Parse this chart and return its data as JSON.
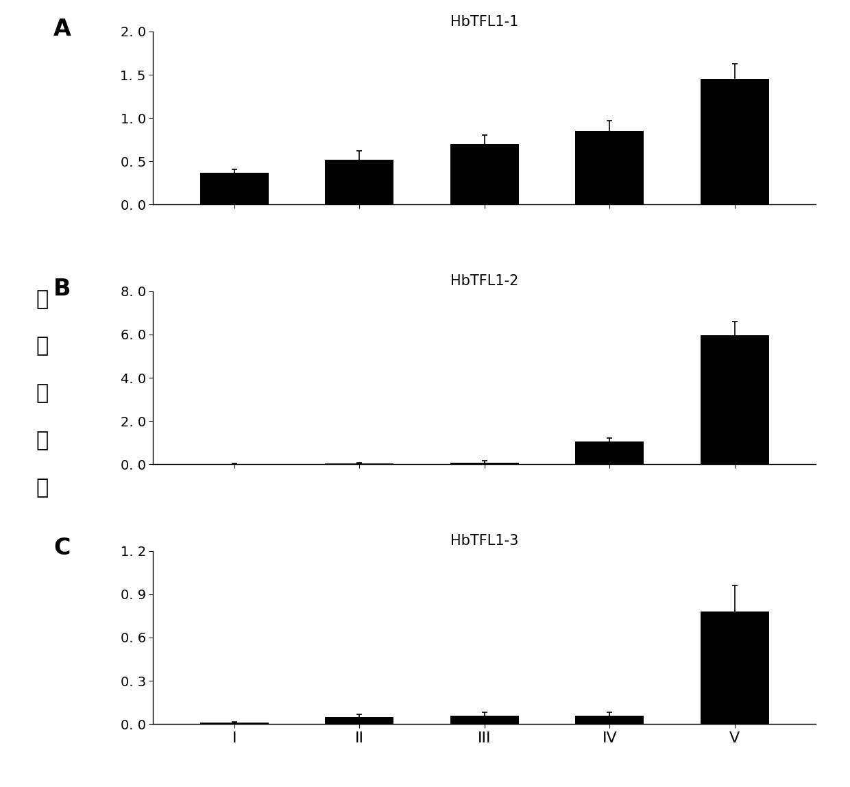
{
  "panels": [
    {
      "label": "A",
      "title": "HbTFL1-1",
      "categories": [
        "I",
        "II",
        "III",
        "IV",
        "V"
      ],
      "values": [
        0.37,
        0.52,
        0.7,
        0.85,
        1.45
      ],
      "errors": [
        0.04,
        0.1,
        0.1,
        0.12,
        0.18
      ],
      "ylim": [
        0,
        2.0
      ],
      "yticks": [
        0.0,
        0.5,
        1.0,
        1.5,
        2.0
      ],
      "yticklabels": [
        "0. 0",
        "0. 5",
        "1. 0",
        "1. 5",
        "2. 0"
      ]
    },
    {
      "label": "B",
      "title": "HbTFL1-2",
      "categories": [
        "I",
        "II",
        "III",
        "IV",
        "V"
      ],
      "values": [
        0.02,
        0.05,
        0.08,
        1.05,
        5.95
      ],
      "errors": [
        0.01,
        0.02,
        0.08,
        0.15,
        0.65
      ],
      "ylim": [
        0,
        8.0
      ],
      "yticks": [
        0.0,
        2.0,
        4.0,
        6.0,
        8.0
      ],
      "yticklabels": [
        "0. 0",
        "2. 0",
        "4. 0",
        "6. 0",
        "8. 0"
      ]
    },
    {
      "label": "C",
      "title": "HbTFL1-3",
      "categories": [
        "I",
        "II",
        "III",
        "IV",
        "V"
      ],
      "values": [
        0.01,
        0.05,
        0.06,
        0.06,
        0.78
      ],
      "errors": [
        0.005,
        0.015,
        0.02,
        0.02,
        0.18
      ],
      "ylim": [
        0,
        1.2
      ],
      "yticks": [
        0.0,
        0.3,
        0.6,
        0.9,
        1.2
      ],
      "yticklabels": [
        "0. 0",
        "0. 3",
        "0. 6",
        "0. 9",
        "1. 2"
      ]
    }
  ],
  "ylabel_chars": [
    "相",
    "对",
    "表",
    "达",
    "量"
  ],
  "bar_color": "#000000",
  "bar_width": 0.55,
  "background_color": "#ffffff",
  "label_fontsize": 24,
  "title_fontsize": 15,
  "tick_fontsize": 14,
  "ylabel_fontsize": 22,
  "xlabel_fontsize": 16
}
